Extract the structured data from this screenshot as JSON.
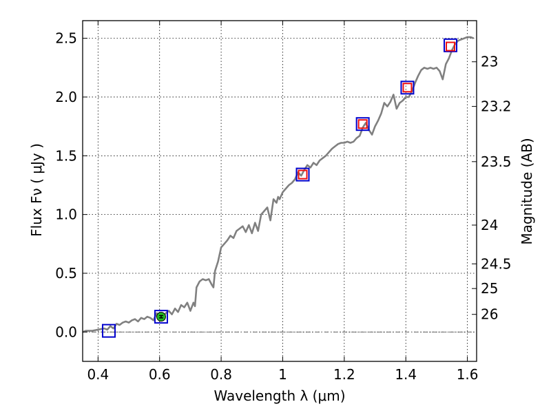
{
  "chart_data": {
    "type": "line",
    "title": "",
    "xlabel": "Wavelength  λ (μm)",
    "ylabel": "Flux  Fν  ( μJy )",
    "ylabel_right": "Magnitude (AB)",
    "xlim": [
      0.35,
      1.63
    ],
    "ylim": [
      -0.25,
      2.65
    ],
    "grid": true,
    "x_ticks": [
      0.4,
      0.6,
      0.8,
      1.0,
      1.2,
      1.4,
      1.6
    ],
    "x_tick_labels": [
      "0.4",
      "0.6",
      "0.8",
      "1",
      "1.2",
      "1.4",
      "1.6"
    ],
    "y_ticks": [
      0.0,
      0.5,
      1.0,
      1.5,
      2.0,
      2.5
    ],
    "y_tick_labels": [
      "0.0",
      "0.5",
      "1.0",
      "1.5",
      "2.0",
      "2.5"
    ],
    "right_ticks": [
      {
        "flux": 2.3,
        "label": "23"
      },
      {
        "flux": 1.92,
        "label": "23.2"
      },
      {
        "flux": 1.45,
        "label": "23.5"
      },
      {
        "flux": 0.91,
        "label": "24"
      },
      {
        "flux": 0.58,
        "label": "24.5"
      },
      {
        "flux": 0.37,
        "label": "25"
      },
      {
        "flux": 0.15,
        "label": "26"
      }
    ],
    "zero_line": 0.0,
    "series": [
      {
        "kind": "line",
        "color": "#808080",
        "x": [
          0.35,
          0.36,
          0.38,
          0.4,
          0.42,
          0.43,
          0.44,
          0.45,
          0.46,
          0.47,
          0.48,
          0.49,
          0.5,
          0.51,
          0.52,
          0.53,
          0.54,
          0.55,
          0.56,
          0.57,
          0.58,
          0.59,
          0.6,
          0.61,
          0.62,
          0.63,
          0.64,
          0.65,
          0.66,
          0.67,
          0.68,
          0.69,
          0.7,
          0.71,
          0.715,
          0.72,
          0.73,
          0.74,
          0.75,
          0.76,
          0.77,
          0.775,
          0.78,
          0.79,
          0.8,
          0.81,
          0.82,
          0.83,
          0.84,
          0.85,
          0.86,
          0.87,
          0.88,
          0.89,
          0.9,
          0.91,
          0.92,
          0.93,
          0.94,
          0.95,
          0.96,
          0.97,
          0.98,
          0.985,
          0.99,
          1.0,
          1.01,
          1.02,
          1.03,
          1.04,
          1.05,
          1.06,
          1.07,
          1.08,
          1.09,
          1.1,
          1.11,
          1.12,
          1.13,
          1.14,
          1.15,
          1.16,
          1.17,
          1.18,
          1.19,
          1.2,
          1.21,
          1.22,
          1.23,
          1.24,
          1.25,
          1.26,
          1.27,
          1.28,
          1.29,
          1.3,
          1.31,
          1.32,
          1.33,
          1.34,
          1.35,
          1.36,
          1.37,
          1.38,
          1.39,
          1.4,
          1.41,
          1.42,
          1.43,
          1.44,
          1.45,
          1.46,
          1.47,
          1.48,
          1.49,
          1.5,
          1.51,
          1.52,
          1.53,
          1.54,
          1.55,
          1.56,
          1.57,
          1.58,
          1.59,
          1.6,
          1.61,
          1.62
        ],
        "y": [
          0.0,
          0.01,
          0.01,
          0.02,
          0.03,
          0.02,
          0.05,
          0.03,
          0.07,
          0.06,
          0.08,
          0.09,
          0.08,
          0.1,
          0.11,
          0.09,
          0.12,
          0.11,
          0.13,
          0.12,
          0.1,
          0.16,
          0.15,
          0.13,
          0.16,
          0.18,
          0.15,
          0.2,
          0.17,
          0.23,
          0.21,
          0.25,
          0.18,
          0.25,
          0.22,
          0.38,
          0.43,
          0.45,
          0.44,
          0.45,
          0.4,
          0.38,
          0.52,
          0.6,
          0.72,
          0.75,
          0.78,
          0.82,
          0.8,
          0.86,
          0.88,
          0.9,
          0.85,
          0.91,
          0.84,
          0.93,
          0.86,
          1.0,
          1.03,
          1.06,
          0.95,
          1.13,
          1.1,
          1.15,
          1.13,
          1.19,
          1.22,
          1.25,
          1.27,
          1.3,
          1.36,
          1.33,
          1.38,
          1.42,
          1.4,
          1.44,
          1.42,
          1.46,
          1.48,
          1.5,
          1.53,
          1.56,
          1.58,
          1.6,
          1.61,
          1.61,
          1.62,
          1.61,
          1.62,
          1.65,
          1.67,
          1.74,
          1.78,
          1.72,
          1.68,
          1.75,
          1.8,
          1.86,
          1.95,
          1.92,
          1.96,
          2.02,
          1.9,
          1.95,
          1.97,
          2.0,
          2.0,
          2.05,
          2.12,
          2.18,
          2.23,
          2.25,
          2.24,
          2.25,
          2.24,
          2.25,
          2.22,
          2.15,
          2.28,
          2.33,
          2.4,
          2.45,
          2.48,
          2.49,
          2.5,
          2.51,
          2.51,
          2.5
        ]
      },
      {
        "kind": "marker",
        "shape": "square",
        "name": "",
        "edge_color": "#0000cc",
        "fill": "none",
        "x": [
          0.435,
          0.605,
          1.065,
          1.26,
          1.405,
          1.545
        ],
        "y": [
          0.01,
          0.13,
          1.34,
          1.77,
          2.08,
          2.44
        ]
      },
      {
        "kind": "marker",
        "shape": "square",
        "name": "",
        "edge_color": "#ee1111",
        "fill": "none",
        "x": [
          1.065,
          1.26,
          1.405,
          1.545
        ],
        "y": [
          1.34,
          1.77,
          2.08,
          2.43
        ]
      },
      {
        "kind": "marker",
        "shape": "circle",
        "name": "",
        "edge_color": "#000000",
        "fill": "#22bb22",
        "x": [
          0.605
        ],
        "y": [
          0.13
        ],
        "yerr": [
          0.01
        ]
      }
    ]
  }
}
